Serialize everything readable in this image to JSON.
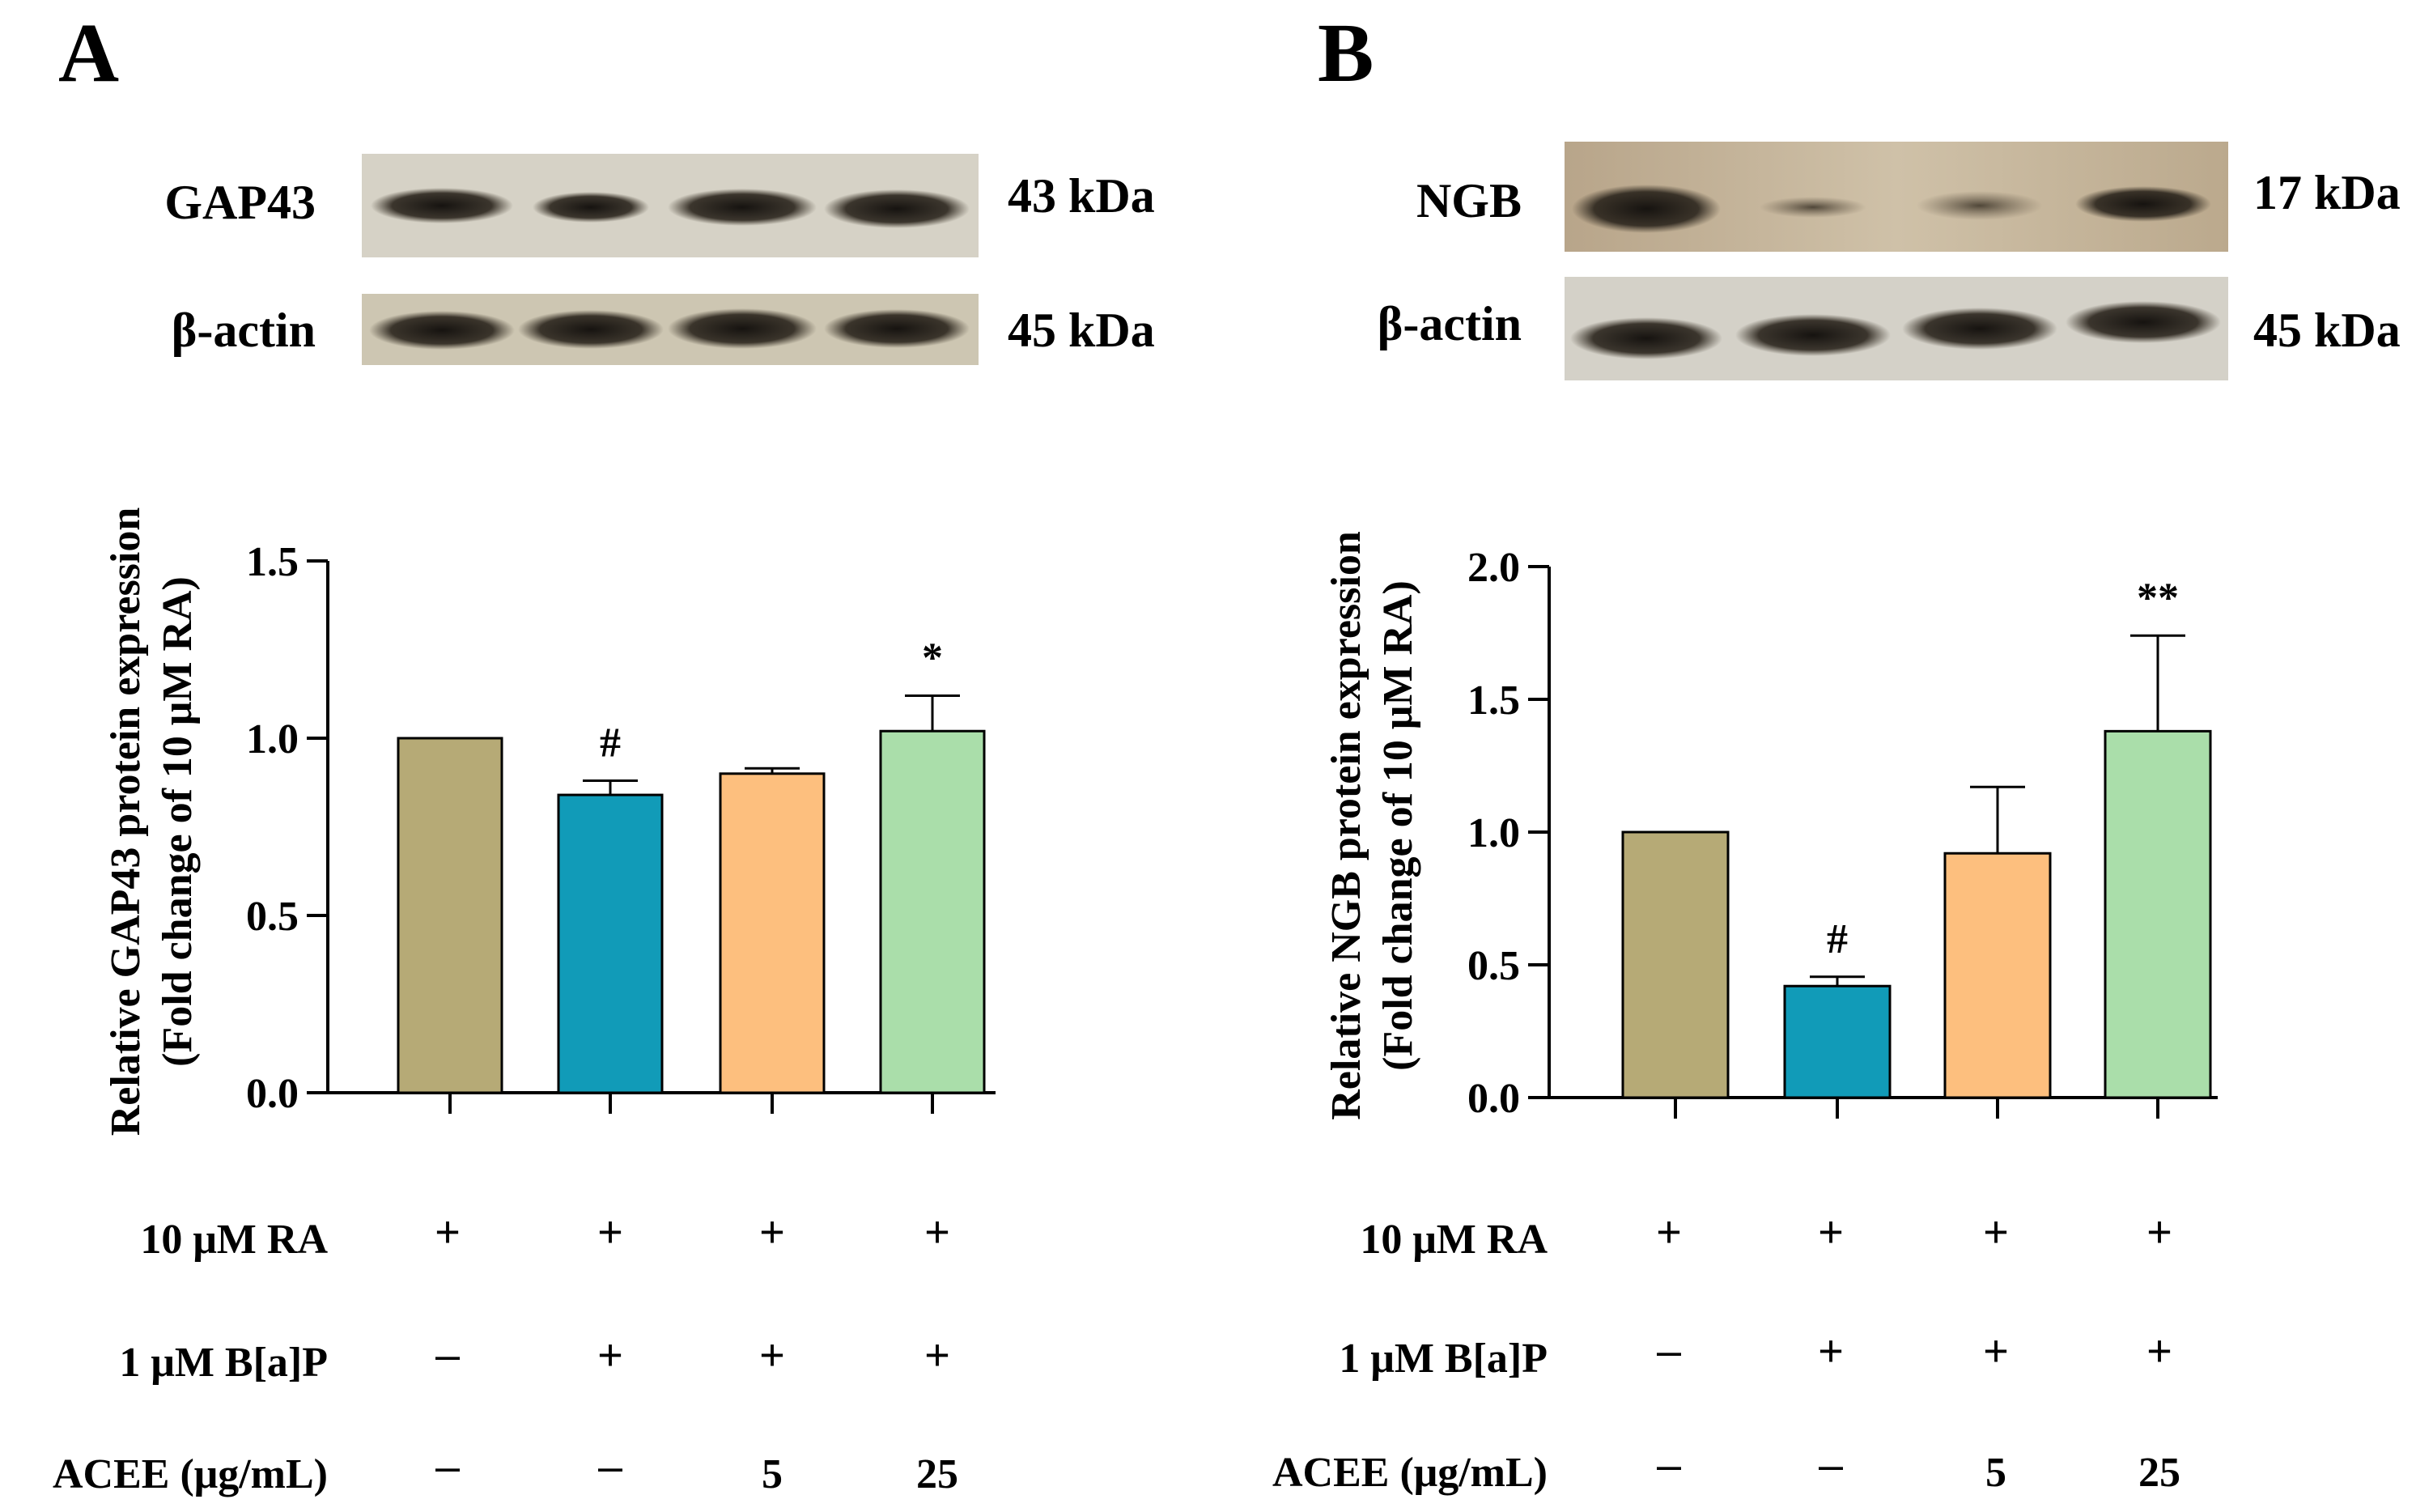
{
  "panels": [
    {
      "letter": "A",
      "blots": [
        {
          "protein": "GAP43",
          "mw": "43 kDa"
        },
        {
          "protein": "β-actin",
          "mw": "45 kDa"
        }
      ]
    },
    {
      "letter": "B",
      "blots": [
        {
          "protein": "NGB",
          "mw": "17 kDa"
        },
        {
          "protein": "β-actin",
          "mw": "45 kDa"
        }
      ]
    }
  ],
  "chart_data": [
    {
      "type": "bar",
      "panel": "A",
      "categories": [
        "RA",
        "RA + B[a]P",
        "RA + B[a]P + ACEE 5",
        "RA + B[a]P + ACEE 25"
      ],
      "values": [
        1.0,
        0.84,
        0.9,
        1.02
      ],
      "errors": [
        0.0,
        0.04,
        0.015,
        0.1
      ],
      "annotations": [
        "",
        "#",
        "",
        "*"
      ],
      "colors": [
        "#b6aa76",
        "#119bb8",
        "#fdbf7e",
        "#aadeaa"
      ],
      "ylabel_line1": "Relative GAP43 protein expression",
      "ylabel_line2": "(Fold change of 10 μM RA)",
      "ylim": [
        0,
        1.5
      ],
      "yticks": [
        "0.0",
        "0.5",
        "1.0",
        "1.5"
      ],
      "ytick_values": [
        0,
        0.5,
        1.0,
        1.5
      ]
    },
    {
      "type": "bar",
      "panel": "B",
      "categories": [
        "RA",
        "RA + B[a]P",
        "RA + B[a]P + ACEE 5",
        "RA + B[a]P + ACEE 25"
      ],
      "values": [
        1.0,
        0.42,
        0.92,
        1.38
      ],
      "errors": [
        0.0,
        0.035,
        0.25,
        0.36
      ],
      "annotations": [
        "",
        "#",
        "",
        "**"
      ],
      "colors": [
        "#b6aa76",
        "#119bb8",
        "#fdbf7e",
        "#aadeaa"
      ],
      "ylabel_line1": "Relative NGB protein expression",
      "ylabel_line2": "(Fold change of 10 μM RA)",
      "ylim": [
        0,
        2.0
      ],
      "yticks": [
        "0.0",
        "0.5",
        "1.0",
        "1.5",
        "2.0"
      ],
      "ytick_values": [
        0,
        0.5,
        1.0,
        1.5,
        2.0
      ]
    }
  ],
  "conditions": [
    {
      "label": "10 μM RA",
      "values": [
        "+",
        "+",
        "+",
        "+"
      ]
    },
    {
      "label": "1 μM B[a]P",
      "values": [
        "–",
        "+",
        "+",
        "+"
      ]
    },
    {
      "label": "ACEE (μg/mL)",
      "values": [
        "–",
        "–",
        "5",
        "25"
      ]
    }
  ]
}
